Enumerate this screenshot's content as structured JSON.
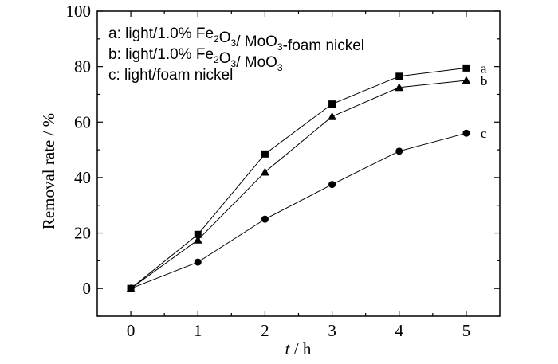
{
  "chart_data": {
    "type": "line",
    "xlabel": "t",
    "xlabel_unit": " / h",
    "ylabel": "Removal rate / %",
    "x": [
      0,
      1,
      2,
      3,
      4,
      5
    ],
    "xlim": [
      -0.5,
      5.5
    ],
    "ylim": [
      -10,
      100
    ],
    "yticks": [
      0,
      20,
      40,
      60,
      80,
      100
    ],
    "xticks": [
      0,
      1,
      2,
      3,
      4,
      5
    ],
    "grid": false,
    "legend_position": "top-left",
    "series": [
      {
        "name": "a",
        "marker": "square",
        "values": [
          0,
          19.5,
          48.5,
          66.5,
          76.5,
          79.5
        ],
        "legend": {
          "pre": "a: light/1.0% Fe",
          "sub1": "2",
          "mid1": "O",
          "sub2": "3",
          "mid2": "/ MoO",
          "sub3": "3",
          "post": "-foam nickel"
        }
      },
      {
        "name": "b",
        "marker": "triangle",
        "values": [
          0,
          17.5,
          42,
          62,
          72.5,
          75
        ],
        "legend": {
          "pre": "b: light/1.0% Fe",
          "sub1": "2",
          "mid1": "O",
          "sub2": "3",
          "mid2": "/ MoO",
          "sub3": "3",
          "post": ""
        }
      },
      {
        "name": "c",
        "marker": "circle",
        "values": [
          0,
          9.5,
          25,
          37.5,
          49.5,
          56
        ],
        "legend": {
          "pre": "c: light/foam nickel",
          "sub1": "",
          "mid1": "",
          "sub2": "",
          "mid2": "",
          "sub3": "",
          "post": ""
        }
      }
    ]
  }
}
